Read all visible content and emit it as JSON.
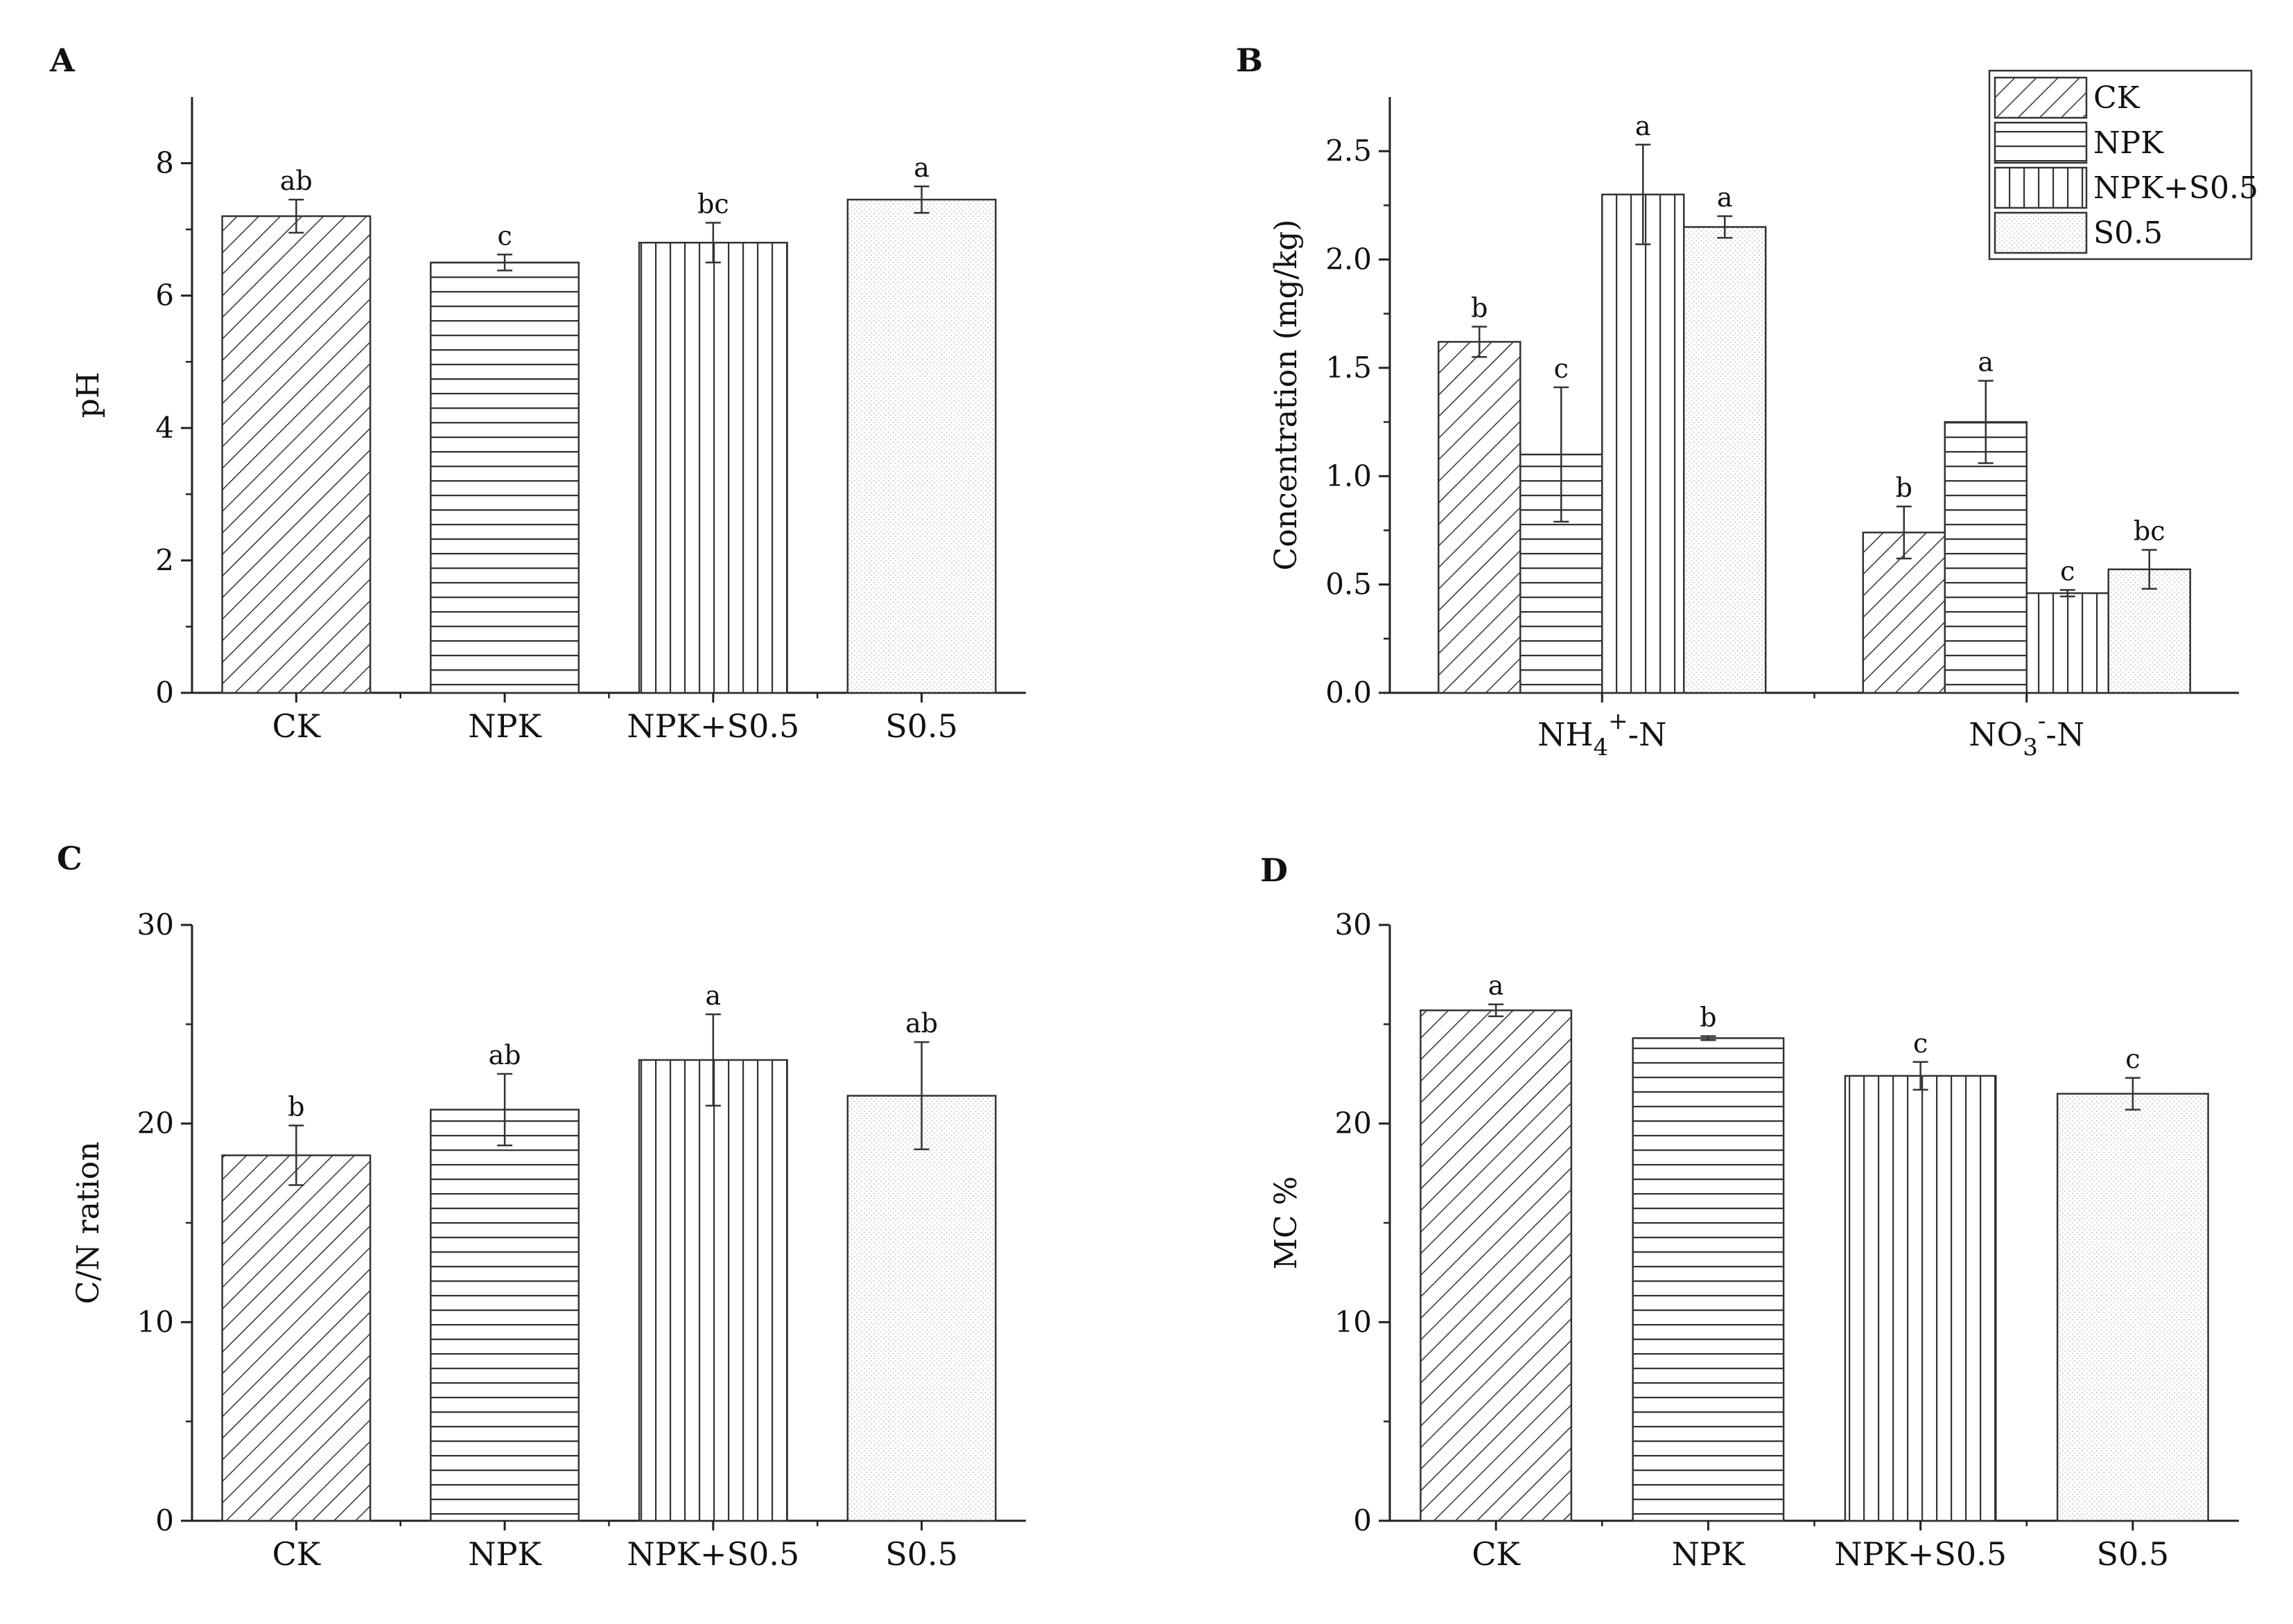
{
  "chart_data": [
    {
      "panel": "A",
      "type": "bar",
      "categories": [
        "CK",
        "NPK",
        "NPK+S0.5",
        "S0.5"
      ],
      "values": [
        7.2,
        6.5,
        6.8,
        7.45
      ],
      "errors": [
        0.25,
        0.12,
        0.3,
        0.2
      ],
      "significance": [
        "ab",
        "c",
        "bc",
        "a"
      ],
      "ylabel": "pH",
      "ylim": [
        0,
        9
      ],
      "yticks": [
        0,
        2,
        4,
        6,
        8
      ],
      "patterns": [
        "diag",
        "horiz",
        "vert",
        "dots"
      ]
    },
    {
      "panel": "B",
      "type": "bar",
      "groups": [
        {
          "pre": "NH",
          "sub": "4",
          "sup": "+",
          "post": "-N"
        },
        {
          "pre": "NO",
          "sub": "3",
          "sup": "-",
          "post": "-N"
        }
      ],
      "series": [
        {
          "name": "CK",
          "pattern": "diag",
          "values": [
            1.62,
            0.74
          ],
          "errors": [
            0.07,
            0.12
          ],
          "significance": [
            "b",
            "b"
          ]
        },
        {
          "name": "NPK",
          "pattern": "horiz",
          "values": [
            1.1,
            1.25
          ],
          "errors": [
            0.31,
            0.19
          ],
          "significance": [
            "c",
            "a"
          ]
        },
        {
          "name": "NPK+S0.5",
          "pattern": "vert",
          "values": [
            2.3,
            0.46
          ],
          "errors": [
            0.23,
            0.015
          ],
          "significance": [
            "a",
            "c"
          ]
        },
        {
          "name": "S0.5",
          "pattern": "dots",
          "values": [
            2.15,
            0.57
          ],
          "errors": [
            0.05,
            0.09
          ],
          "significance": [
            "a",
            "bc"
          ]
        }
      ],
      "ylabel": "Concentration (mg/kg)",
      "ylim": [
        0,
        2.75
      ],
      "yticks": [
        "0.0",
        "0.5",
        "1.0",
        "1.5",
        "2.0",
        "2.5"
      ],
      "legend": "top-right"
    },
    {
      "panel": "C",
      "type": "bar",
      "categories": [
        "CK",
        "NPK",
        "NPK+S0.5",
        "S0.5"
      ],
      "values": [
        18.4,
        20.7,
        23.2,
        21.4
      ],
      "errors": [
        1.5,
        1.8,
        2.3,
        2.7
      ],
      "significance": [
        "b",
        "ab",
        "a",
        "ab"
      ],
      "ylabel": "C/N ration",
      "ylim": [
        0,
        30
      ],
      "yticks": [
        0,
        10,
        20,
        30
      ],
      "patterns": [
        "diag",
        "horiz",
        "vert",
        "dots"
      ]
    },
    {
      "panel": "D",
      "type": "bar",
      "categories": [
        "CK",
        "NPK",
        "NPK+S0.5",
        "S0.5"
      ],
      "values": [
        25.7,
        24.3,
        22.4,
        21.5
      ],
      "errors": [
        0.3,
        0.1,
        0.7,
        0.8
      ],
      "significance": [
        "a",
        "b",
        "c",
        "c"
      ],
      "ylabel": "MC %",
      "ylim": [
        0,
        30
      ],
      "yticks": [
        0,
        10,
        20,
        30
      ],
      "patterns": [
        "diag",
        "horiz",
        "vert",
        "dots"
      ]
    }
  ]
}
